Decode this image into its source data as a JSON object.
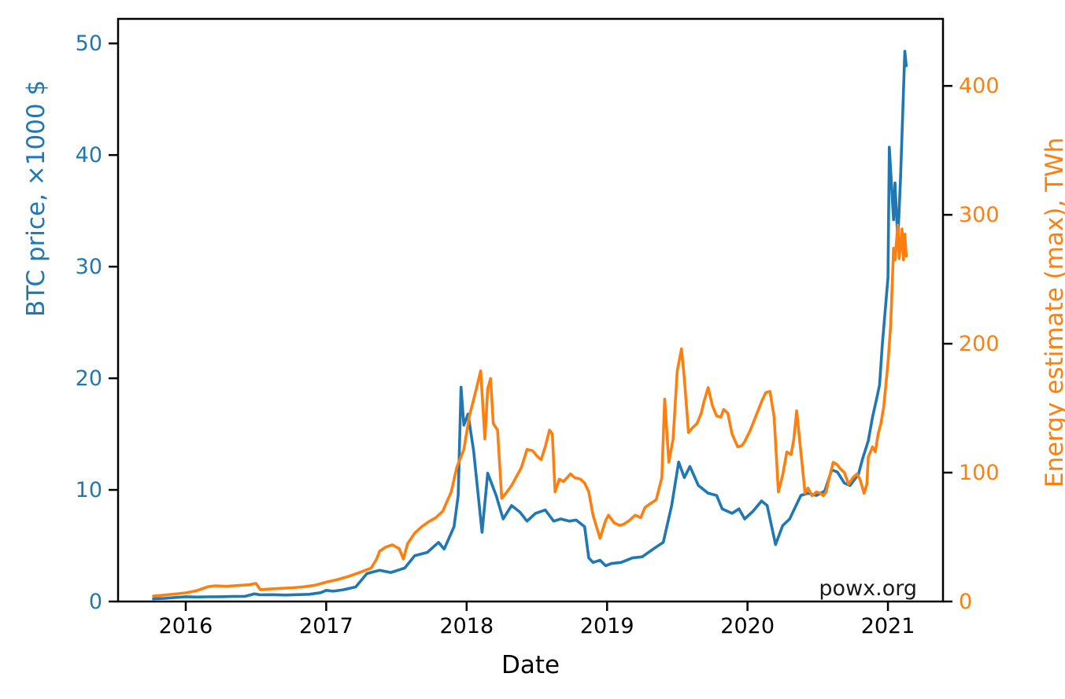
{
  "figure": {
    "watermark": "powx.org"
  },
  "chart_data": {
    "type": "line",
    "title": "",
    "xlabel": "Date",
    "ylabel_left": "BTC price, ×1000 $",
    "ylabel_right": "Energy estimate (max), TWh",
    "grid": false,
    "legend": "none",
    "colors": {
      "price": "#1f77b4",
      "energy": "#ff7f0e",
      "spine": "#000000",
      "watermark_color": "#1a1a1a"
    },
    "x_range": [
      2015.518,
      2021.392
    ],
    "x_ticks": [
      2016,
      2017,
      2018,
      2019,
      2020,
      2021
    ],
    "y_left": {
      "label": "BTC price, ×1000 $",
      "range": [
        0,
        52.2
      ],
      "ticks": [
        0,
        10,
        20,
        30,
        40,
        50
      ],
      "color": "#1f77b4"
    },
    "y_right": {
      "label": "Energy estimate (max), TWh",
      "range": [
        0,
        452
      ],
      "ticks": [
        0,
        100,
        200,
        300,
        400
      ],
      "color": "#ff7f0e"
    },
    "series": [
      {
        "name": "BTC price, ×1000 $",
        "axis": "left",
        "color": "#1f77b4",
        "points": [
          [
            2015.77,
            0.24
          ],
          [
            2015.85,
            0.28
          ],
          [
            2015.92,
            0.36
          ],
          [
            2016.0,
            0.43
          ],
          [
            2016.08,
            0.4
          ],
          [
            2016.17,
            0.42
          ],
          [
            2016.25,
            0.43
          ],
          [
            2016.33,
            0.45
          ],
          [
            2016.42,
            0.46
          ],
          [
            2016.49,
            0.68
          ],
          [
            2016.53,
            0.6
          ],
          [
            2016.62,
            0.61
          ],
          [
            2016.71,
            0.58
          ],
          [
            2016.79,
            0.61
          ],
          [
            2016.88,
            0.65
          ],
          [
            2016.96,
            0.79
          ],
          [
            2017.0,
            1.0
          ],
          [
            2017.05,
            0.92
          ],
          [
            2017.12,
            1.05
          ],
          [
            2017.21,
            1.3
          ],
          [
            2017.29,
            2.5
          ],
          [
            2017.38,
            2.8
          ],
          [
            2017.46,
            2.6
          ],
          [
            2017.56,
            3.0
          ],
          [
            2017.63,
            4.1
          ],
          [
            2017.72,
            4.4
          ],
          [
            2017.8,
            5.3
          ],
          [
            2017.84,
            4.7
          ],
          [
            2017.91,
            6.7
          ],
          [
            2017.94,
            9.5
          ],
          [
            2017.96,
            19.2
          ],
          [
            2017.98,
            15.8
          ],
          [
            2018.01,
            16.8
          ],
          [
            2018.05,
            13.5
          ],
          [
            2018.11,
            6.2
          ],
          [
            2018.15,
            11.5
          ],
          [
            2018.21,
            9.5
          ],
          [
            2018.26,
            7.4
          ],
          [
            2018.32,
            8.6
          ],
          [
            2018.38,
            8.0
          ],
          [
            2018.43,
            7.2
          ],
          [
            2018.49,
            7.9
          ],
          [
            2018.56,
            8.2
          ],
          [
            2018.62,
            7.2
          ],
          [
            2018.67,
            7.4
          ],
          [
            2018.73,
            7.2
          ],
          [
            2018.78,
            7.3
          ],
          [
            2018.84,
            6.7
          ],
          [
            2018.87,
            3.9
          ],
          [
            2018.9,
            3.5
          ],
          [
            2018.95,
            3.7
          ],
          [
            2018.99,
            3.2
          ],
          [
            2019.03,
            3.4
          ],
          [
            2019.1,
            3.5
          ],
          [
            2019.18,
            3.9
          ],
          [
            2019.25,
            4.0
          ],
          [
            2019.34,
            4.8
          ],
          [
            2019.4,
            5.3
          ],
          [
            2019.46,
            8.6
          ],
          [
            2019.51,
            12.5
          ],
          [
            2019.55,
            11.1
          ],
          [
            2019.59,
            12.1
          ],
          [
            2019.65,
            10.4
          ],
          [
            2019.72,
            9.7
          ],
          [
            2019.78,
            9.5
          ],
          [
            2019.82,
            8.3
          ],
          [
            2019.89,
            7.9
          ],
          [
            2019.94,
            8.3
          ],
          [
            2019.98,
            7.4
          ],
          [
            2020.04,
            8.1
          ],
          [
            2020.1,
            9.0
          ],
          [
            2020.14,
            8.6
          ],
          [
            2020.2,
            5.1
          ],
          [
            2020.25,
            6.8
          ],
          [
            2020.3,
            7.4
          ],
          [
            2020.38,
            9.5
          ],
          [
            2020.43,
            9.7
          ],
          [
            2020.49,
            9.5
          ],
          [
            2020.55,
            9.9
          ],
          [
            2020.6,
            11.8
          ],
          [
            2020.64,
            11.6
          ],
          [
            2020.69,
            10.6
          ],
          [
            2020.73,
            10.4
          ],
          [
            2020.79,
            11.4
          ],
          [
            2020.82,
            12.8
          ],
          [
            2020.86,
            14.4
          ],
          [
            2020.89,
            16.5
          ],
          [
            2020.92,
            18.2
          ],
          [
            2020.94,
            19.4
          ],
          [
            2020.96,
            23.0
          ],
          [
            2021.0,
            29.0
          ],
          [
            2021.01,
            40.7
          ],
          [
            2021.04,
            34.2
          ],
          [
            2021.05,
            37.5
          ],
          [
            2021.07,
            32.3
          ],
          [
            2021.09,
            38.0
          ],
          [
            2021.12,
            49.3
          ],
          [
            2021.13,
            48.0
          ]
        ]
      },
      {
        "name": "Energy estimate (max), TWh",
        "axis": "right",
        "color": "#ff7f0e",
        "points": [
          [
            2015.77,
            4.2
          ],
          [
            2015.85,
            5.0
          ],
          [
            2015.92,
            5.8
          ],
          [
            2016.0,
            6.7
          ],
          [
            2016.08,
            8.5
          ],
          [
            2016.16,
            11.5
          ],
          [
            2016.21,
            12.2
          ],
          [
            2016.29,
            11.8
          ],
          [
            2016.37,
            12.4
          ],
          [
            2016.45,
            13.0
          ],
          [
            2016.5,
            14.0
          ],
          [
            2016.53,
            9.2
          ],
          [
            2016.6,
            9.7
          ],
          [
            2016.68,
            10.2
          ],
          [
            2016.76,
            10.7
          ],
          [
            2016.84,
            11.4
          ],
          [
            2016.92,
            12.6
          ],
          [
            2017.0,
            15.0
          ],
          [
            2017.08,
            17.0
          ],
          [
            2017.16,
            19.5
          ],
          [
            2017.25,
            23.0
          ],
          [
            2017.32,
            26.0
          ],
          [
            2017.36,
            33.0
          ],
          [
            2017.38,
            39.0
          ],
          [
            2017.42,
            42.0
          ],
          [
            2017.47,
            44.0
          ],
          [
            2017.52,
            41.0
          ],
          [
            2017.55,
            33.0
          ],
          [
            2017.58,
            45.0
          ],
          [
            2017.63,
            53.0
          ],
          [
            2017.68,
            58.0
          ],
          [
            2017.73,
            62.0
          ],
          [
            2017.78,
            65.0
          ],
          [
            2017.83,
            70.0
          ],
          [
            2017.89,
            85.0
          ],
          [
            2017.93,
            104.0
          ],
          [
            2017.98,
            118.0
          ],
          [
            2018.02,
            144.0
          ],
          [
            2018.06,
            161.0
          ],
          [
            2018.1,
            179.0
          ],
          [
            2018.13,
            126.0
          ],
          [
            2018.15,
            165.0
          ],
          [
            2018.17,
            173.0
          ],
          [
            2018.19,
            138.0
          ],
          [
            2018.22,
            133.0
          ],
          [
            2018.25,
            80.0
          ],
          [
            2018.28,
            84.0
          ],
          [
            2018.32,
            90.0
          ],
          [
            2018.36,
            98.0
          ],
          [
            2018.39,
            104.0
          ],
          [
            2018.43,
            118.0
          ],
          [
            2018.47,
            117.0
          ],
          [
            2018.5,
            113.0
          ],
          [
            2018.53,
            110.0
          ],
          [
            2018.56,
            120.0
          ],
          [
            2018.59,
            133.0
          ],
          [
            2018.61,
            130.0
          ],
          [
            2018.63,
            85.0
          ],
          [
            2018.66,
            95.0
          ],
          [
            2018.69,
            93.0
          ],
          [
            2018.74,
            99.0
          ],
          [
            2018.77,
            96.0
          ],
          [
            2018.81,
            95.0
          ],
          [
            2018.84,
            92.0
          ],
          [
            2018.87,
            85.0
          ],
          [
            2018.9,
            67.0
          ],
          [
            2018.95,
            49.0
          ],
          [
            2018.99,
            63.0
          ],
          [
            2019.01,
            67.0
          ],
          [
            2019.05,
            61.0
          ],
          [
            2019.09,
            59.0
          ],
          [
            2019.12,
            60.0
          ],
          [
            2019.16,
            63.0
          ],
          [
            2019.2,
            67.0
          ],
          [
            2019.24,
            65.0
          ],
          [
            2019.27,
            73.0
          ],
          [
            2019.31,
            76.0
          ],
          [
            2019.35,
            79.0
          ],
          [
            2019.39,
            96.0
          ],
          [
            2019.41,
            157.0
          ],
          [
            2019.44,
            108.0
          ],
          [
            2019.47,
            126.0
          ],
          [
            2019.5,
            179.0
          ],
          [
            2019.53,
            196.0
          ],
          [
            2019.55,
            173.0
          ],
          [
            2019.58,
            131.0
          ],
          [
            2019.61,
            135.0
          ],
          [
            2019.64,
            138.0
          ],
          [
            2019.67,
            146.0
          ],
          [
            2019.69,
            155.0
          ],
          [
            2019.72,
            166.0
          ],
          [
            2019.75,
            152.0
          ],
          [
            2019.78,
            144.0
          ],
          [
            2019.81,
            143.0
          ],
          [
            2019.83,
            149.0
          ],
          [
            2019.86,
            146.0
          ],
          [
            2019.89,
            130.0
          ],
          [
            2019.93,
            120.0
          ],
          [
            2019.96,
            121.0
          ],
          [
            2019.98,
            124.0
          ],
          [
            2020.02,
            133.0
          ],
          [
            2020.06,
            144.0
          ],
          [
            2020.1,
            155.0
          ],
          [
            2020.13,
            162.0
          ],
          [
            2020.16,
            163.0
          ],
          [
            2020.19,
            143.0
          ],
          [
            2020.22,
            85.0
          ],
          [
            2020.25,
            98.0
          ],
          [
            2020.28,
            116.0
          ],
          [
            2020.31,
            114.0
          ],
          [
            2020.33,
            126.0
          ],
          [
            2020.35,
            148.0
          ],
          [
            2020.38,
            116.0
          ],
          [
            2020.41,
            84.0
          ],
          [
            2020.43,
            88.0
          ],
          [
            2020.46,
            82.0
          ],
          [
            2020.49,
            85.0
          ],
          [
            2020.52,
            84.0
          ],
          [
            2020.54,
            82.0
          ],
          [
            2020.56,
            85.0
          ],
          [
            2020.58,
            95.0
          ],
          [
            2020.61,
            108.0
          ],
          [
            2020.64,
            106.0
          ],
          [
            2020.66,
            103.0
          ],
          [
            2020.69,
            100.0
          ],
          [
            2020.72,
            91.0
          ],
          [
            2020.75,
            96.0
          ],
          [
            2020.78,
            99.0
          ],
          [
            2020.8,
            95.0
          ],
          [
            2020.83,
            84.0
          ],
          [
            2020.85,
            91.0
          ],
          [
            2020.86,
            112.0
          ],
          [
            2020.89,
            120.0
          ],
          [
            2020.91,
            116.0
          ],
          [
            2020.93,
            130.0
          ],
          [
            2020.95,
            138.0
          ],
          [
            2020.97,
            151.0
          ],
          [
            2021.0,
            185.0
          ],
          [
            2021.02,
            215.0
          ],
          [
            2021.04,
            274.0
          ],
          [
            2021.05,
            265.0
          ],
          [
            2021.07,
            292.0
          ],
          [
            2021.08,
            266.0
          ],
          [
            2021.1,
            289.0
          ],
          [
            2021.11,
            265.0
          ],
          [
            2021.12,
            285.0
          ],
          [
            2021.13,
            268.0
          ]
        ]
      }
    ],
    "annotations": [
      {
        "text": "powx.org",
        "position": "bottom-right-inside"
      }
    ]
  }
}
